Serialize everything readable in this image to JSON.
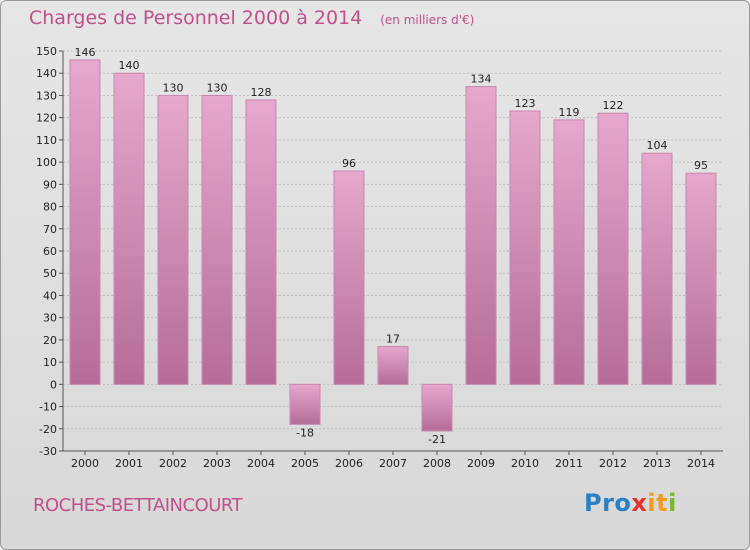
{
  "header": {
    "title": "Charges de Personnel 2000 à 2014",
    "subtitle": "(en milliers d'€)"
  },
  "footer": {
    "commune": "ROCHES-BETTAINCOURT",
    "logo_text": "Proxiti"
  },
  "colors": {
    "accent": "#c0508a",
    "bar_top": "#e6a8cc",
    "bar_bottom": "#b46d98",
    "bar_edge": "#c888ad"
  },
  "chart_data": {
    "type": "bar",
    "title": "Charges de Personnel 2000 à 2014",
    "subtitle": "(en milliers d'€)",
    "categories": [
      "2000",
      "2001",
      "2002",
      "2003",
      "2004",
      "2005",
      "2006",
      "2007",
      "2008",
      "2009",
      "2010",
      "2011",
      "2012",
      "2013",
      "2014"
    ],
    "values": [
      146,
      140,
      130,
      130,
      128,
      -18,
      96,
      17,
      -21,
      134,
      123,
      119,
      122,
      104,
      95
    ],
    "ylim": [
      -30,
      150
    ],
    "yticks": [
      -30,
      -20,
      -10,
      0,
      10,
      20,
      30,
      40,
      50,
      60,
      70,
      80,
      90,
      100,
      110,
      120,
      130,
      140,
      150
    ],
    "grid": true,
    "legend": "none"
  }
}
